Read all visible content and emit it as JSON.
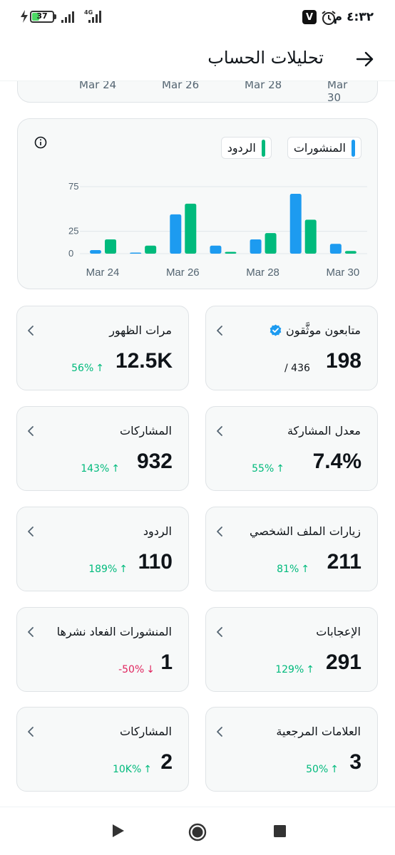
{
  "status_bar": {
    "time": "٤:٣٢ م",
    "battery_level": "37",
    "battery_percent": 0.37,
    "network": "4G",
    "app_badge": "V"
  },
  "header": {
    "title": "تحليلات الحساب"
  },
  "previous_chart_labels": [
    "Mar 24",
    "Mar 26",
    "Mar 28",
    "Mar 30"
  ],
  "colors": {
    "posts": "#1d9bf0",
    "replies": "#00ba7c",
    "positive": "#00ba7c",
    "negative": "#e0245e"
  },
  "legend": {
    "posts_label": "المنشورات",
    "replies_label": "الردود"
  },
  "chart_data": {
    "type": "bar",
    "categories": [
      "Mar 24",
      "Mar 25",
      "Mar 26",
      "Mar 27",
      "Mar 28",
      "Mar 29",
      "Mar 30"
    ],
    "x_tick_labels": [
      "Mar 24",
      "Mar 26",
      "Mar 28",
      "Mar 30"
    ],
    "y_tick_labels": [
      "0",
      "25",
      "75"
    ],
    "yticks": [
      0,
      25,
      75
    ],
    "ylim": [
      0,
      75
    ],
    "grid": true,
    "legend_position": "top-right",
    "series": [
      {
        "name": "المنشورات",
        "color": "#1d9bf0",
        "values": [
          4,
          1,
          44,
          9,
          16,
          67,
          11
        ]
      },
      {
        "name": "الردود",
        "color": "#00ba7c",
        "values": [
          16,
          9,
          56,
          2,
          23,
          38,
          3
        ]
      }
    ]
  },
  "stats": [
    {
      "title": "متابعون موثَّقون",
      "value": "198",
      "sub_total": "/ 436",
      "verified": true
    },
    {
      "title": "مرات الظهور",
      "value": "12.5K",
      "change": "56%",
      "direction": "up"
    },
    {
      "title": "معدل المشاركة",
      "value": "7.4%",
      "change": "55%",
      "direction": "up"
    },
    {
      "title": "المشاركات",
      "value": "932",
      "change": "143%",
      "direction": "up"
    },
    {
      "title": "زيارات الملف الشخصي",
      "value": "211",
      "change": "81%",
      "direction": "up"
    },
    {
      "title": "الردود",
      "value": "110",
      "change": "189%",
      "direction": "up"
    },
    {
      "title": "الإعجابات",
      "value": "291",
      "change": "129%",
      "direction": "up"
    },
    {
      "title": "المنشورات الفعاد نشرها",
      "value": "1",
      "change": "-50%",
      "direction": "down"
    },
    {
      "title": "العلامات المرجعية",
      "value": "3",
      "change": "50%",
      "direction": "up"
    },
    {
      "title": "المشاركات",
      "value": "2",
      "change": "10K%",
      "direction": "up"
    }
  ],
  "nav": {
    "buttons": [
      "back-triangle",
      "home-circle",
      "recents-square"
    ]
  }
}
